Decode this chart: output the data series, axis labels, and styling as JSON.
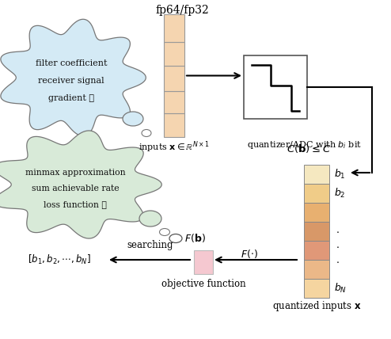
{
  "bg_color": "#ffffff",
  "top_label": "fp64/fp32",
  "inputs_label": "inputs $\\mathbf{x}\\in\\mathbb{R}^{N\\times 1}$",
  "quantizer_label": "quantizer/ADC with $b_i$ bit",
  "constraint_label": "$C(\\mathbf{b})\\leq C$",
  "quantized_label": "quantized inputs $\\mathbf{x}$",
  "objective_label": "objective function",
  "searching_label": "searching",
  "Fb_label": "$F(\\mathbf{b})$",
  "Fdot_label": "$F(\\cdot)$",
  "b_vector_label": "$[b_1, b_2, \\cdots, b_N]$",
  "cloud1_lines": [
    "filter coefficient",
    "receiver signal",
    "gradient ⋯"
  ],
  "cloud2_lines": [
    "minmax approximation",
    "sum achievable rate",
    "loss function ⋯"
  ],
  "peach_color": "#f5d5b0",
  "pink_color": "#f5c8d0",
  "cloud1_color": "#d4eaf5",
  "cloud2_color": "#d8ead8",
  "b_colors": [
    "#f5e8c0",
    "#f0cc88",
    "#e8b070",
    "#d89868",
    "#e09878",
    "#ebb888",
    "#f5d5a0"
  ]
}
